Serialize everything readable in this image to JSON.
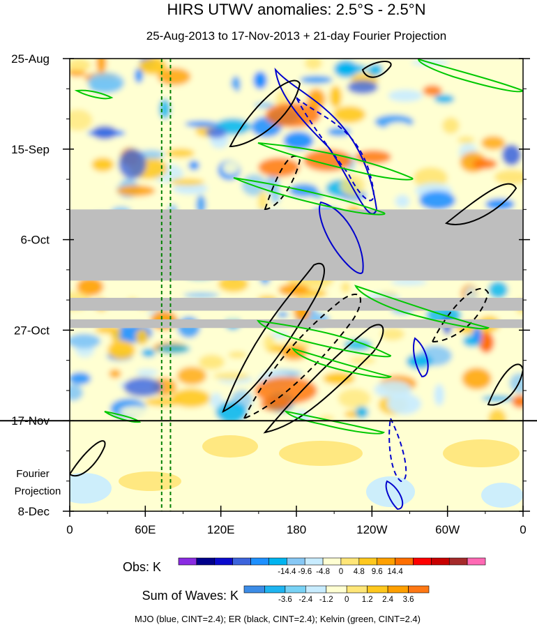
{
  "chart_data": {
    "type": "heatmap",
    "title": "HIRS UTWV anomalies: 2.5°S - 2.5°N",
    "subtitle": "25-Aug-2013 to 17-Nov-2013 + 21-day Fourier Projection",
    "x_tick_labels": [
      "0",
      "60E",
      "120E",
      "180",
      "120W",
      "60W",
      "0"
    ],
    "x_range_deg_east": [
      0,
      360
    ],
    "y_tick_labels": [
      "25-Aug",
      "15-Sep",
      "6-Oct",
      "27-Oct",
      "17-Nov",
      "8-Dec"
    ],
    "y_range_days": [
      0,
      105
    ],
    "observation_end_label": "17-Nov",
    "projection_label": "Fourier Projection",
    "missing_data_bands_days": [
      [
        35,
        51.5
      ],
      [
        55.5,
        58.5
      ],
      [
        60.5,
        62.5
      ]
    ],
    "green_dashed_longitudes_deg": [
      73,
      80
    ],
    "colorbar_obs": {
      "label": "Obs: K",
      "tick_labels": [
        "-14.4",
        "-9.6",
        "-4.8",
        "0",
        "4.8",
        "9.6",
        "14.4"
      ],
      "colors": [
        "#8a2be2",
        "#00008b",
        "#0a0acd",
        "#3c64dc",
        "#1e90ff",
        "#00b4f0",
        "#87c8f5",
        "#c8ecff",
        "#ffffd2",
        "#ffe678",
        "#ffc81e",
        "#ffa000",
        "#ff6e00",
        "#ff0000",
        "#c80000",
        "#a52a2a",
        "#ff69b4"
      ]
    },
    "colorbar_waves": {
      "label": "Sum of Waves: K",
      "tick_labels": [
        "-3.6",
        "-2.4",
        "-1.2",
        "0",
        "1.2",
        "2.4",
        "3.6"
      ],
      "colors": [
        "#3c8ce6",
        "#1eb4f0",
        "#78d2f5",
        "#c8ecff",
        "#ffffd2",
        "#ffe678",
        "#ffc81e",
        "#ffa000",
        "#ff7814"
      ]
    },
    "contour_legend": "MJO (blue, CINT=2.4); ER (black, CINT=2.4); Kelvin (green, CINT=2.4)",
    "series": [
      {
        "name": "MJO",
        "color": "#0000cd",
        "cint": 2.4
      },
      {
        "name": "ER",
        "color": "#000000",
        "cint": 2.4
      },
      {
        "name": "Kelvin",
        "color": "#00c800",
        "cint": 2.4
      }
    ]
  }
}
